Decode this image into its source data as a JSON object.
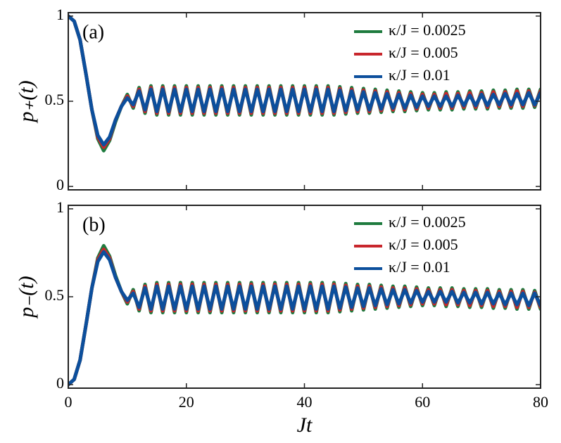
{
  "chart_data": [
    {
      "type": "line",
      "panel_label": "(a)",
      "y_label": "p₊(t)",
      "show_xtick_labels": false,
      "xlim": [
        0,
        80
      ],
      "xticks": [
        0,
        20,
        40,
        60,
        80
      ],
      "ylim": [
        -0.02,
        1.02
      ],
      "yticks": [
        0,
        0.5,
        1
      ],
      "x": [
        0,
        1,
        2,
        3,
        4,
        5,
        6,
        7,
        8,
        9,
        10,
        11,
        12,
        13,
        14,
        15,
        16,
        17,
        18,
        19,
        20,
        21,
        22,
        23,
        24,
        25,
        26,
        27,
        28,
        29,
        30,
        31,
        32,
        33,
        34,
        35,
        36,
        37,
        38,
        39,
        40,
        41,
        42,
        43,
        44,
        45,
        46,
        47,
        48,
        49,
        50,
        51,
        52,
        53,
        54,
        55,
        56,
        57,
        58,
        59,
        60,
        61,
        62,
        63,
        64,
        65,
        66,
        67,
        68,
        69,
        70,
        71,
        72,
        73,
        74,
        75,
        76,
        77,
        78,
        79,
        80
      ],
      "series": [
        {
          "name": "κ/J = 0.0025",
          "color": "#1e7b3e",
          "values": [
            1,
            0.97,
            0.86,
            0.66,
            0.45,
            0.28,
            0.21,
            0.27,
            0.38,
            0.47,
            0.54,
            0.46,
            0.58,
            0.43,
            0.59,
            0.42,
            0.59,
            0.42,
            0.59,
            0.42,
            0.59,
            0.42,
            0.59,
            0.42,
            0.59,
            0.42,
            0.59,
            0.42,
            0.59,
            0.42,
            0.59,
            0.42,
            0.59,
            0.42,
            0.59,
            0.42,
            0.59,
            0.42,
            0.59,
            0.42,
            0.59,
            0.42,
            0.59,
            0.42,
            0.59,
            0.42,
            0.585,
            0.425,
            0.58,
            0.43,
            0.575,
            0.43,
            0.57,
            0.435,
            0.565,
            0.44,
            0.56,
            0.44,
            0.555,
            0.445,
            0.55,
            0.45,
            0.55,
            0.45,
            0.555,
            0.45,
            0.555,
            0.455,
            0.56,
            0.455,
            0.56,
            0.455,
            0.565,
            0.46,
            0.565,
            0.46,
            0.57,
            0.46,
            0.57,
            0.465,
            0.57
          ]
        },
        {
          "name": "κ/J = 0.005",
          "color": "#c8262c",
          "values": [
            1,
            0.97,
            0.86,
            0.66,
            0.45,
            0.29,
            0.23,
            0.28,
            0.39,
            0.47,
            0.53,
            0.47,
            0.57,
            0.44,
            0.58,
            0.43,
            0.58,
            0.43,
            0.58,
            0.43,
            0.58,
            0.43,
            0.58,
            0.43,
            0.58,
            0.43,
            0.58,
            0.43,
            0.58,
            0.43,
            0.58,
            0.43,
            0.58,
            0.43,
            0.58,
            0.43,
            0.58,
            0.43,
            0.58,
            0.43,
            0.58,
            0.43,
            0.58,
            0.43,
            0.58,
            0.43,
            0.575,
            0.435,
            0.57,
            0.44,
            0.565,
            0.44,
            0.56,
            0.445,
            0.555,
            0.45,
            0.55,
            0.45,
            0.545,
            0.455,
            0.54,
            0.46,
            0.54,
            0.46,
            0.545,
            0.46,
            0.545,
            0.465,
            0.55,
            0.465,
            0.55,
            0.465,
            0.555,
            0.47,
            0.555,
            0.47,
            0.56,
            0.47,
            0.56,
            0.475,
            0.56
          ]
        },
        {
          "name": "κ/J = 0.01",
          "color": "#0c4f9c",
          "values": [
            1,
            0.97,
            0.86,
            0.66,
            0.45,
            0.3,
            0.245,
            0.29,
            0.39,
            0.47,
            0.52,
            0.48,
            0.56,
            0.45,
            0.57,
            0.44,
            0.57,
            0.44,
            0.57,
            0.44,
            0.57,
            0.44,
            0.57,
            0.44,
            0.57,
            0.44,
            0.57,
            0.44,
            0.57,
            0.44,
            0.57,
            0.44,
            0.57,
            0.44,
            0.57,
            0.44,
            0.57,
            0.44,
            0.57,
            0.44,
            0.57,
            0.44,
            0.57,
            0.44,
            0.57,
            0.44,
            0.565,
            0.445,
            0.56,
            0.45,
            0.555,
            0.45,
            0.55,
            0.455,
            0.545,
            0.46,
            0.54,
            0.46,
            0.535,
            0.465,
            0.53,
            0.47,
            0.53,
            0.47,
            0.53,
            0.47,
            0.535,
            0.475,
            0.535,
            0.475,
            0.54,
            0.475,
            0.54,
            0.48,
            0.545,
            0.48,
            0.545,
            0.48,
            0.55,
            0.48,
            0.55
          ]
        }
      ]
    },
    {
      "type": "line",
      "panel_label": "(b)",
      "y_label": "p₋(t)",
      "x_label": "Jt",
      "show_xtick_labels": true,
      "xlim": [
        0,
        80
      ],
      "xticks": [
        0,
        20,
        40,
        60,
        80
      ],
      "ylim": [
        -0.02,
        1.02
      ],
      "yticks": [
        0,
        0.5,
        1
      ],
      "x": [
        0,
        1,
        2,
        3,
        4,
        5,
        6,
        7,
        8,
        9,
        10,
        11,
        12,
        13,
        14,
        15,
        16,
        17,
        18,
        19,
        20,
        21,
        22,
        23,
        24,
        25,
        26,
        27,
        28,
        29,
        30,
        31,
        32,
        33,
        34,
        35,
        36,
        37,
        38,
        39,
        40,
        41,
        42,
        43,
        44,
        45,
        46,
        47,
        48,
        49,
        50,
        51,
        52,
        53,
        54,
        55,
        56,
        57,
        58,
        59,
        60,
        61,
        62,
        63,
        64,
        65,
        66,
        67,
        68,
        69,
        70,
        71,
        72,
        73,
        74,
        75,
        76,
        77,
        78,
        79,
        80
      ],
      "series": [
        {
          "name": "κ/J = 0.0025",
          "color": "#1e7b3e",
          "values": [
            0,
            0.03,
            0.14,
            0.34,
            0.55,
            0.72,
            0.79,
            0.73,
            0.62,
            0.53,
            0.46,
            0.54,
            0.42,
            0.57,
            0.41,
            0.58,
            0.41,
            0.58,
            0.41,
            0.58,
            0.41,
            0.58,
            0.41,
            0.58,
            0.41,
            0.58,
            0.41,
            0.58,
            0.41,
            0.58,
            0.41,
            0.58,
            0.41,
            0.58,
            0.41,
            0.58,
            0.41,
            0.58,
            0.41,
            0.58,
            0.41,
            0.58,
            0.41,
            0.58,
            0.41,
            0.58,
            0.415,
            0.575,
            0.42,
            0.57,
            0.425,
            0.57,
            0.43,
            0.565,
            0.435,
            0.56,
            0.44,
            0.56,
            0.445,
            0.555,
            0.45,
            0.55,
            0.45,
            0.55,
            0.445,
            0.55,
            0.445,
            0.545,
            0.44,
            0.545,
            0.44,
            0.545,
            0.435,
            0.54,
            0.435,
            0.54,
            0.43,
            0.54,
            0.43,
            0.535,
            0.43
          ]
        },
        {
          "name": "κ/J = 0.005",
          "color": "#c8262c",
          "values": [
            0,
            0.03,
            0.14,
            0.34,
            0.55,
            0.71,
            0.77,
            0.72,
            0.61,
            0.53,
            0.47,
            0.53,
            0.43,
            0.56,
            0.42,
            0.57,
            0.42,
            0.57,
            0.42,
            0.57,
            0.42,
            0.57,
            0.42,
            0.57,
            0.42,
            0.57,
            0.42,
            0.57,
            0.42,
            0.57,
            0.42,
            0.57,
            0.42,
            0.57,
            0.42,
            0.57,
            0.42,
            0.57,
            0.42,
            0.57,
            0.42,
            0.57,
            0.42,
            0.57,
            0.42,
            0.57,
            0.425,
            0.565,
            0.43,
            0.56,
            0.435,
            0.56,
            0.44,
            0.555,
            0.445,
            0.55,
            0.45,
            0.55,
            0.455,
            0.545,
            0.46,
            0.54,
            0.46,
            0.54,
            0.455,
            0.54,
            0.455,
            0.535,
            0.45,
            0.535,
            0.45,
            0.535,
            0.445,
            0.53,
            0.445,
            0.53,
            0.44,
            0.53,
            0.44,
            0.525,
            0.44
          ]
        },
        {
          "name": "κ/J = 0.01",
          "color": "#0c4f9c",
          "values": [
            0,
            0.03,
            0.14,
            0.34,
            0.55,
            0.7,
            0.755,
            0.71,
            0.61,
            0.53,
            0.48,
            0.52,
            0.44,
            0.55,
            0.43,
            0.56,
            0.43,
            0.56,
            0.43,
            0.56,
            0.43,
            0.56,
            0.43,
            0.56,
            0.43,
            0.56,
            0.43,
            0.56,
            0.43,
            0.56,
            0.43,
            0.56,
            0.43,
            0.56,
            0.43,
            0.56,
            0.43,
            0.56,
            0.43,
            0.56,
            0.43,
            0.56,
            0.43,
            0.56,
            0.43,
            0.56,
            0.435,
            0.555,
            0.44,
            0.55,
            0.445,
            0.55,
            0.45,
            0.545,
            0.455,
            0.54,
            0.46,
            0.54,
            0.465,
            0.535,
            0.47,
            0.53,
            0.47,
            0.53,
            0.47,
            0.53,
            0.465,
            0.525,
            0.465,
            0.525,
            0.46,
            0.525,
            0.46,
            0.52,
            0.455,
            0.52,
            0.455,
            0.52,
            0.45,
            0.52,
            0.45
          ]
        }
      ]
    }
  ]
}
